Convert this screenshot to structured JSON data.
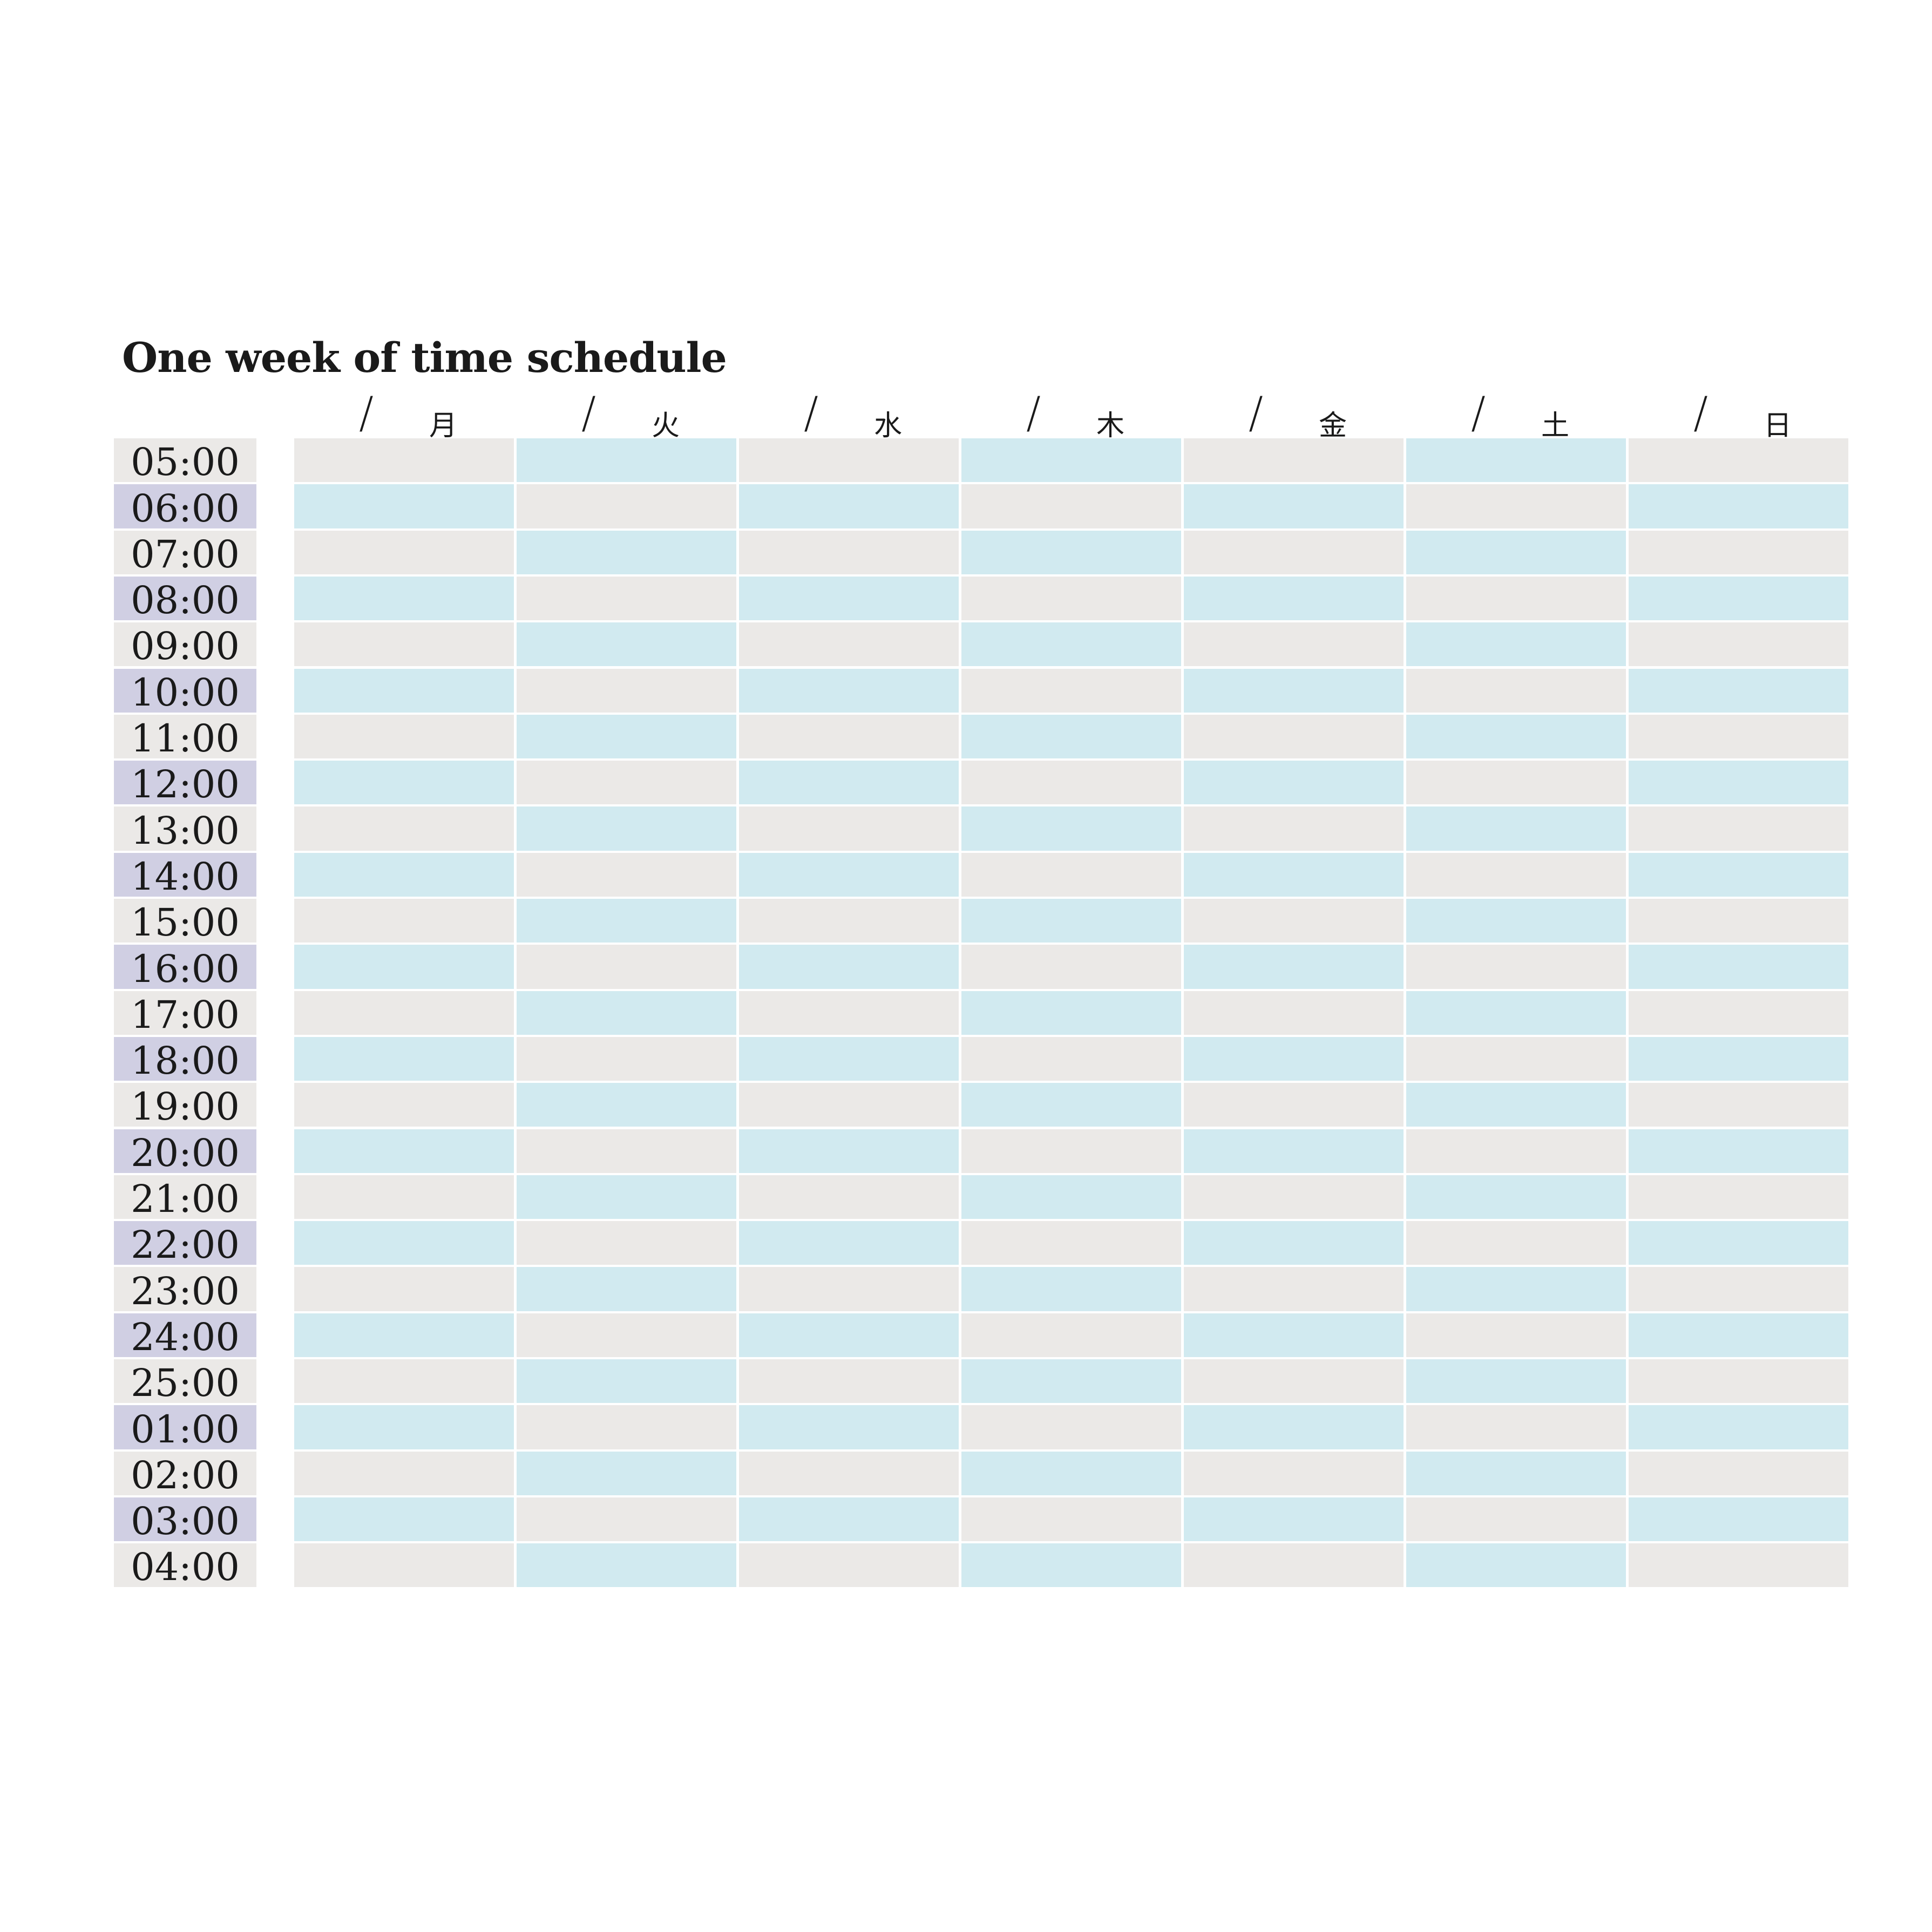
{
  "title": "One week of time schedule",
  "days": [
    {
      "slash": "/",
      "name": "月"
    },
    {
      "slash": "/",
      "name": "火"
    },
    {
      "slash": "/",
      "name": "水"
    },
    {
      "slash": "/",
      "name": "木"
    },
    {
      "slash": "/",
      "name": "金"
    },
    {
      "slash": "/",
      "name": "土"
    },
    {
      "slash": "/",
      "name": "日"
    }
  ],
  "times": [
    "05:00",
    "06:00",
    "07:00",
    "08:00",
    "09:00",
    "10:00",
    "11:00",
    "12:00",
    "13:00",
    "14:00",
    "15:00",
    "16:00",
    "17:00",
    "18:00",
    "19:00",
    "20:00",
    "21:00",
    "22:00",
    "23:00",
    "24:00",
    "25:00",
    "01:00",
    "02:00",
    "03:00",
    "04:00"
  ],
  "colors": {
    "gray": "#ebe9e7",
    "blue": "#d1eaf0",
    "lavender": "#d0cfe3",
    "text": "#1a1a1a"
  }
}
